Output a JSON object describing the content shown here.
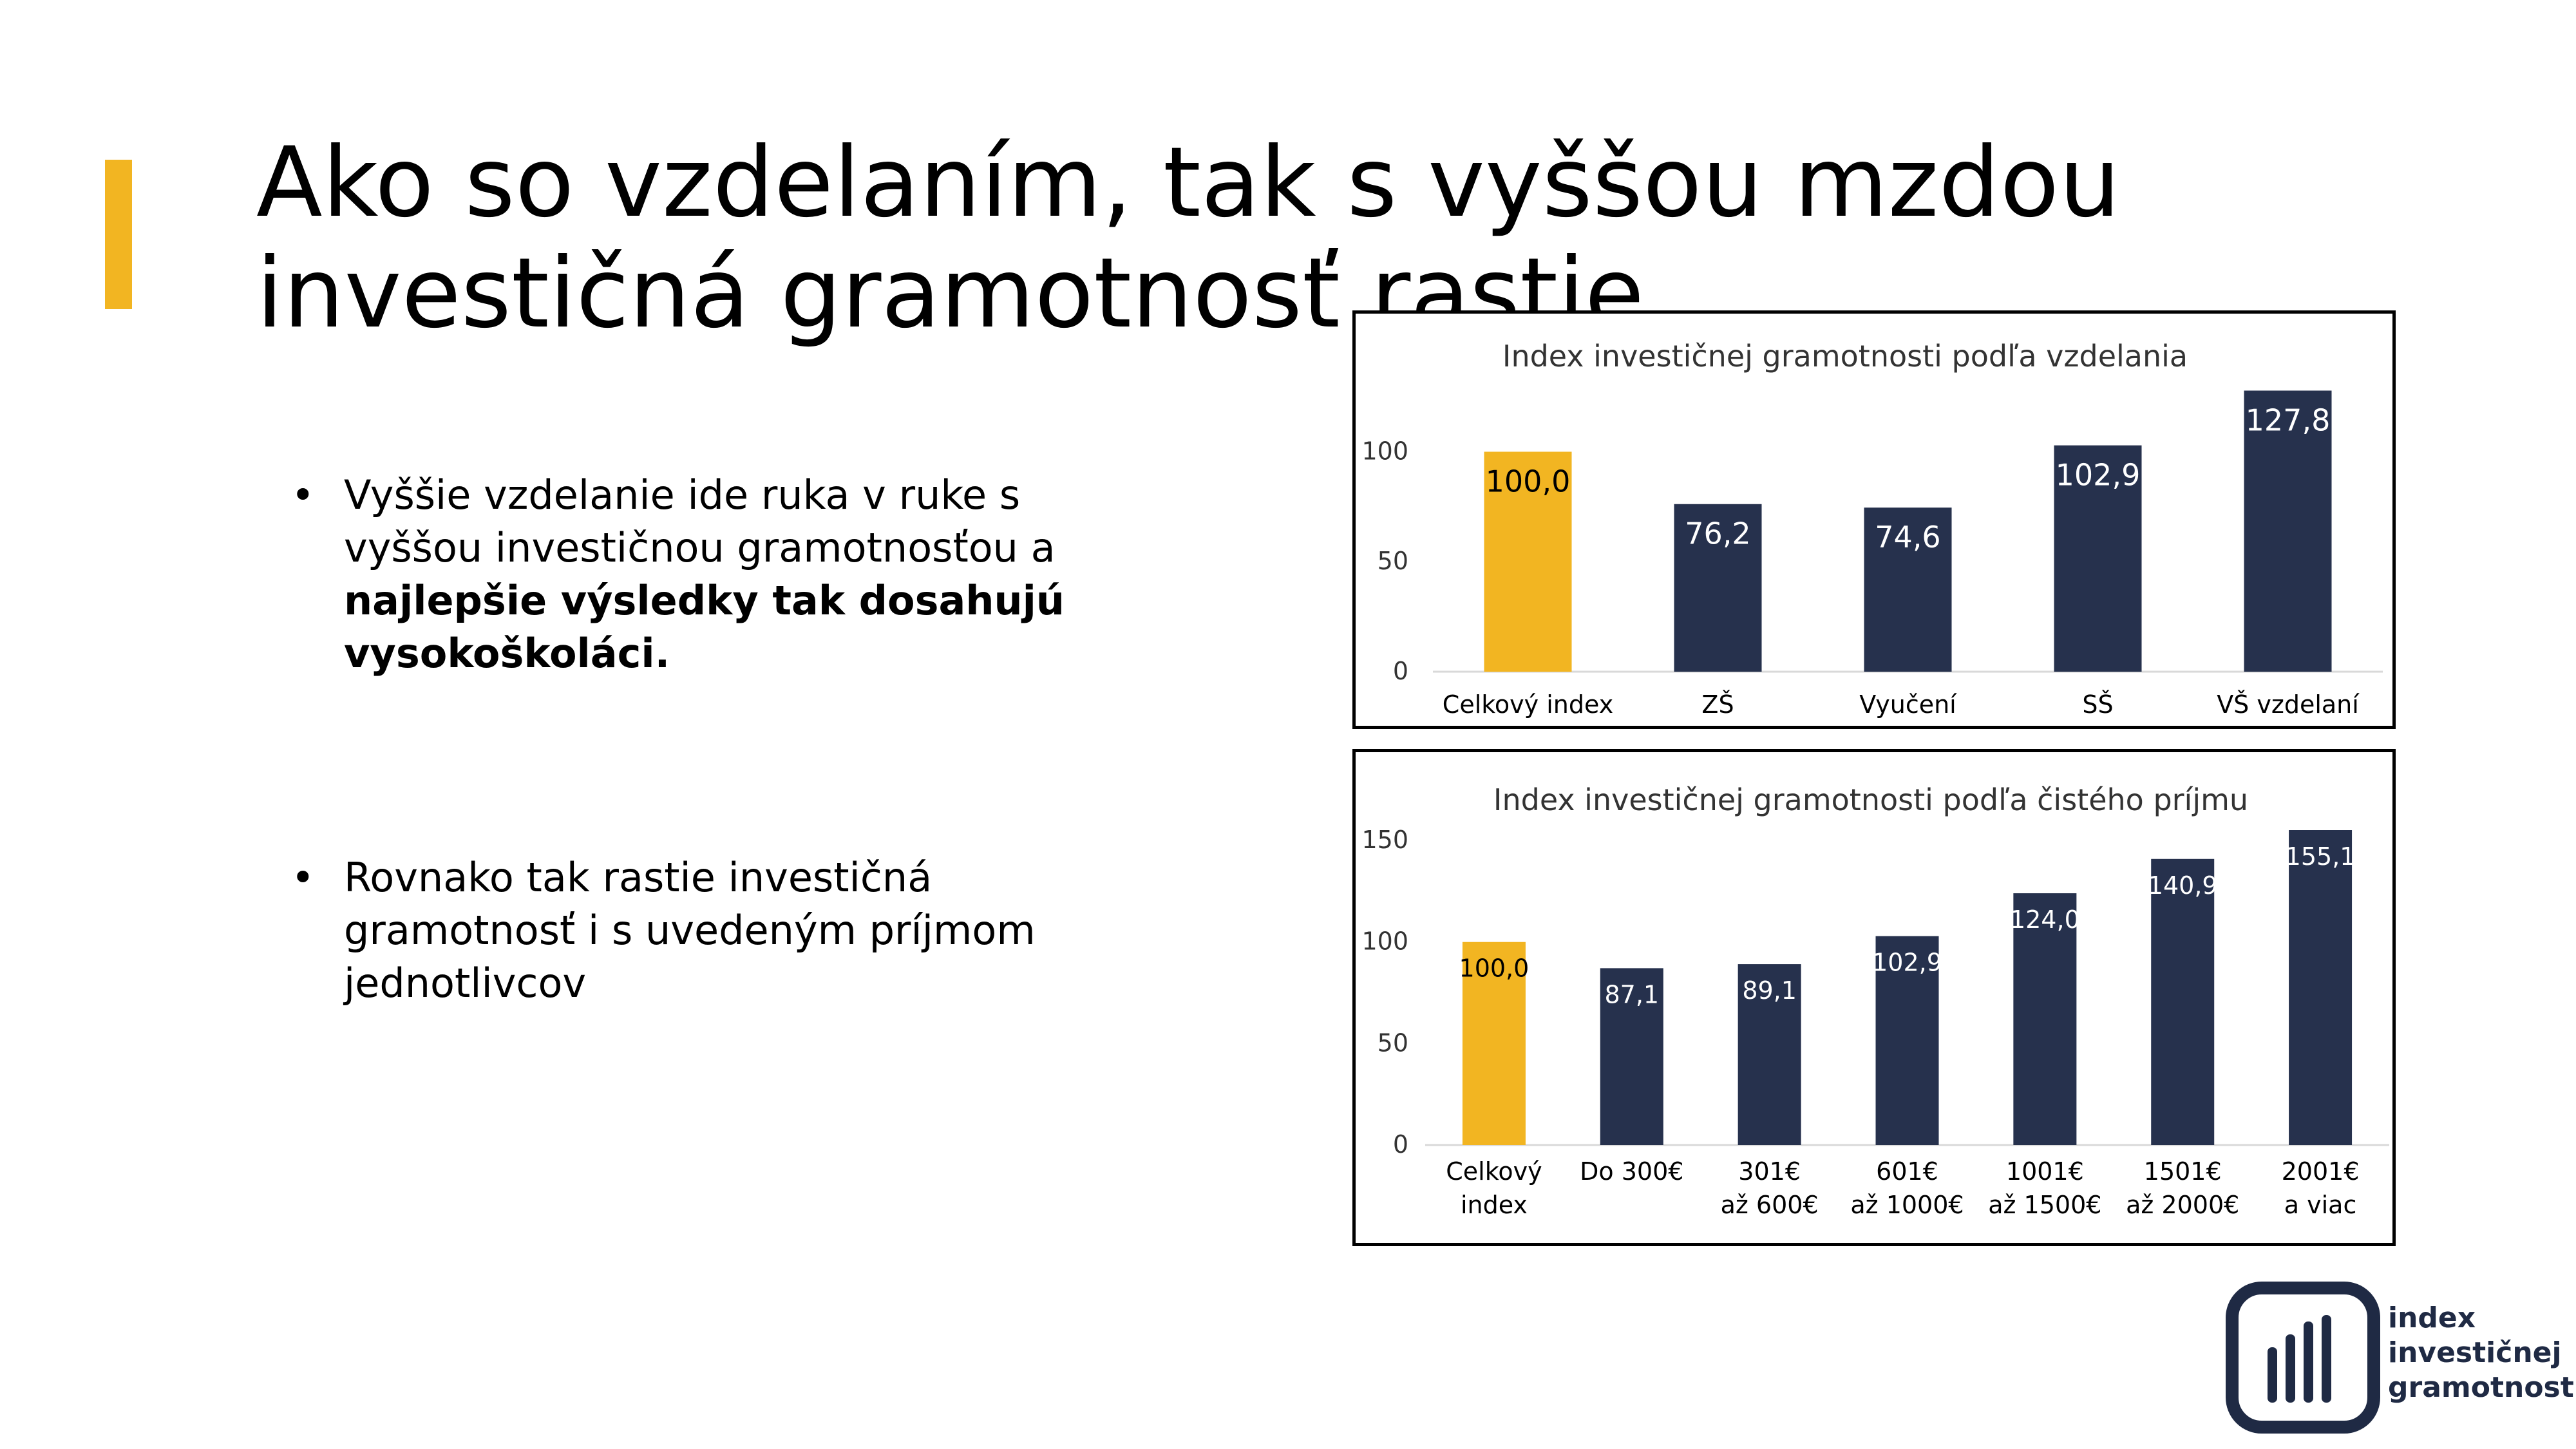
{
  "slide": {
    "title": "Ako so vzdelaním, tak s vyššou mzdou investičná gramotnosť rastie",
    "bullets": [
      {
        "text_before": "Vyššie vzdelanie ide ruka v ruke s vyššou investičnou gramotnosťou a ",
        "bold": "najlepšie výsledky tak dosahujú vysokoškoláci."
      },
      {
        "text_before": "Rovnako tak rastie investičná gramotnosť i s uvedeným príjmom jednotlivcov",
        "bold": ""
      }
    ],
    "colors": {
      "accent": "#F2B522",
      "bar": "#26314D",
      "axis": "#D9D9D9"
    }
  },
  "chart_data": [
    {
      "type": "bar",
      "title": "Index investičnej gramotnosti podľa vzdelania",
      "categories": [
        "Celkový index",
        "ZŠ",
        "Vyučení",
        "SŠ",
        "VŠ vzdelaní"
      ],
      "values": [
        100.0,
        76.2,
        74.6,
        102.9,
        127.8
      ],
      "labels": [
        "100,0",
        "76,2",
        "74,6",
        "102,9",
        "127,8"
      ],
      "highlight_index": 0,
      "ylim": [
        0,
        130
      ],
      "yticks": [
        0,
        50,
        100
      ],
      "ytick_labels": [
        "0",
        "50",
        "100"
      ],
      "grid": false,
      "legend": "none"
    },
    {
      "type": "bar",
      "title": "Index investičnej gramotnosti podľa čistého príjmu",
      "categories": [
        [
          "Celkový",
          "index"
        ],
        [
          "Do 300€"
        ],
        [
          "301€",
          "až 600€"
        ],
        [
          "601€",
          "až 1000€"
        ],
        [
          "1001€",
          "až 1500€"
        ],
        [
          "1501€",
          "až 2000€"
        ],
        [
          "2001€",
          "a viac"
        ]
      ],
      "values": [
        100.0,
        87.1,
        89.1,
        102.9,
        124.0,
        140.9,
        155.1
      ],
      "labels": [
        "100,0",
        "87,1",
        "89,1",
        "102,9",
        "124,0",
        "140,9",
        "155,1"
      ],
      "highlight_index": 0,
      "ylim": [
        0,
        155.1
      ],
      "yticks": [
        0,
        50,
        100,
        150
      ],
      "ytick_labels": [
        "0",
        "50",
        "100",
        "150"
      ],
      "grid": false,
      "legend": "none"
    }
  ],
  "logo": {
    "lines": [
      "index",
      "investičnej",
      "gramotnosti"
    ],
    "icon": "bar-chart-logo-icon"
  }
}
